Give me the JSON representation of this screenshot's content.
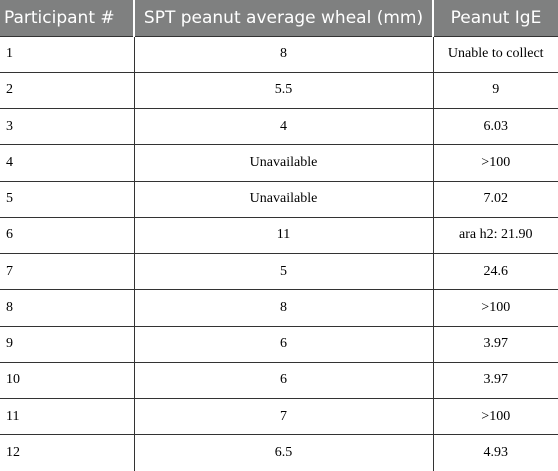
{
  "table": {
    "headers": [
      "Participant #",
      "SPT peanut average wheal (mm)",
      "Peanut IgE"
    ],
    "rows": [
      [
        "1",
        "8",
        "Unable to collect"
      ],
      [
        "2",
        "5.5",
        "9"
      ],
      [
        "3",
        "4",
        "6.03"
      ],
      [
        "4",
        "Unavailable",
        ">100"
      ],
      [
        "5",
        "Unavailable",
        "7.02"
      ],
      [
        "6",
        "11",
        "ara h2: 21.90"
      ],
      [
        "7",
        "5",
        "24.6"
      ],
      [
        "8",
        "8",
        ">100"
      ],
      [
        "9",
        "6",
        "3.97"
      ],
      [
        "10",
        "6",
        "3.97"
      ],
      [
        "11",
        "7",
        ">100"
      ],
      [
        "12",
        "6.5",
        "4.93"
      ]
    ]
  }
}
